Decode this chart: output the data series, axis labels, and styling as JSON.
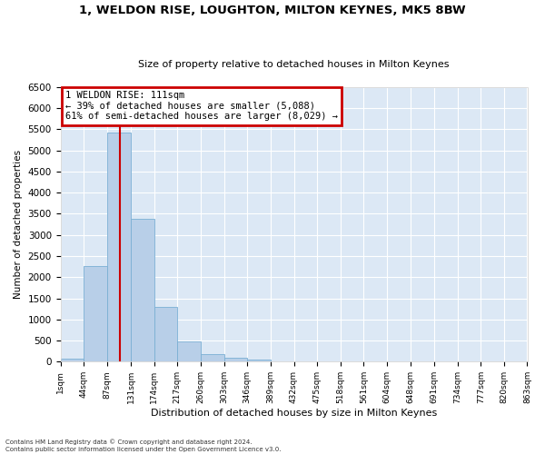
{
  "title_line1": "1, WELDON RISE, LOUGHTON, MILTON KEYNES, MK5 8BW",
  "title_line2": "Size of property relative to detached houses in Milton Keynes",
  "xlabel": "Distribution of detached houses by size in Milton Keynes",
  "ylabel": "Number of detached properties",
  "footnote": "Contains HM Land Registry data © Crown copyright and database right 2024.\nContains public sector information licensed under the Open Government Licence v3.0.",
  "bar_color": "#b8cfe8",
  "bar_edge_color": "#7aafd4",
  "background_color": "#dce8f5",
  "grid_color": "#ffffff",
  "annotation_box_color": "#cc0000",
  "vline_color": "#cc0000",
  "annotation_text": "1 WELDON RISE: 111sqm\n← 39% of detached houses are smaller (5,088)\n61% of semi-detached houses are larger (8,029) →",
  "property_size_sqm": 111,
  "bin_edges": [
    1,
    44,
    87,
    131,
    174,
    217,
    260,
    303,
    346,
    389,
    432,
    475,
    518,
    561,
    604,
    648,
    691,
    734,
    777,
    820,
    863
  ],
  "bin_counts": [
    75,
    2260,
    5430,
    3380,
    1300,
    490,
    190,
    85,
    50,
    0,
    0,
    0,
    0,
    0,
    0,
    0,
    0,
    0,
    0,
    0
  ],
  "ylim": [
    0,
    6500
  ],
  "yticks": [
    0,
    500,
    1000,
    1500,
    2000,
    2500,
    3000,
    3500,
    4000,
    4500,
    5000,
    5500,
    6000,
    6500
  ],
  "title1_fontsize": 9.5,
  "title2_fontsize": 8,
  "ylabel_fontsize": 7.5,
  "xlabel_fontsize": 8,
  "ytick_fontsize": 7.5,
  "xtick_fontsize": 6.5,
  "footnote_fontsize": 5,
  "annot_fontsize": 7.5
}
